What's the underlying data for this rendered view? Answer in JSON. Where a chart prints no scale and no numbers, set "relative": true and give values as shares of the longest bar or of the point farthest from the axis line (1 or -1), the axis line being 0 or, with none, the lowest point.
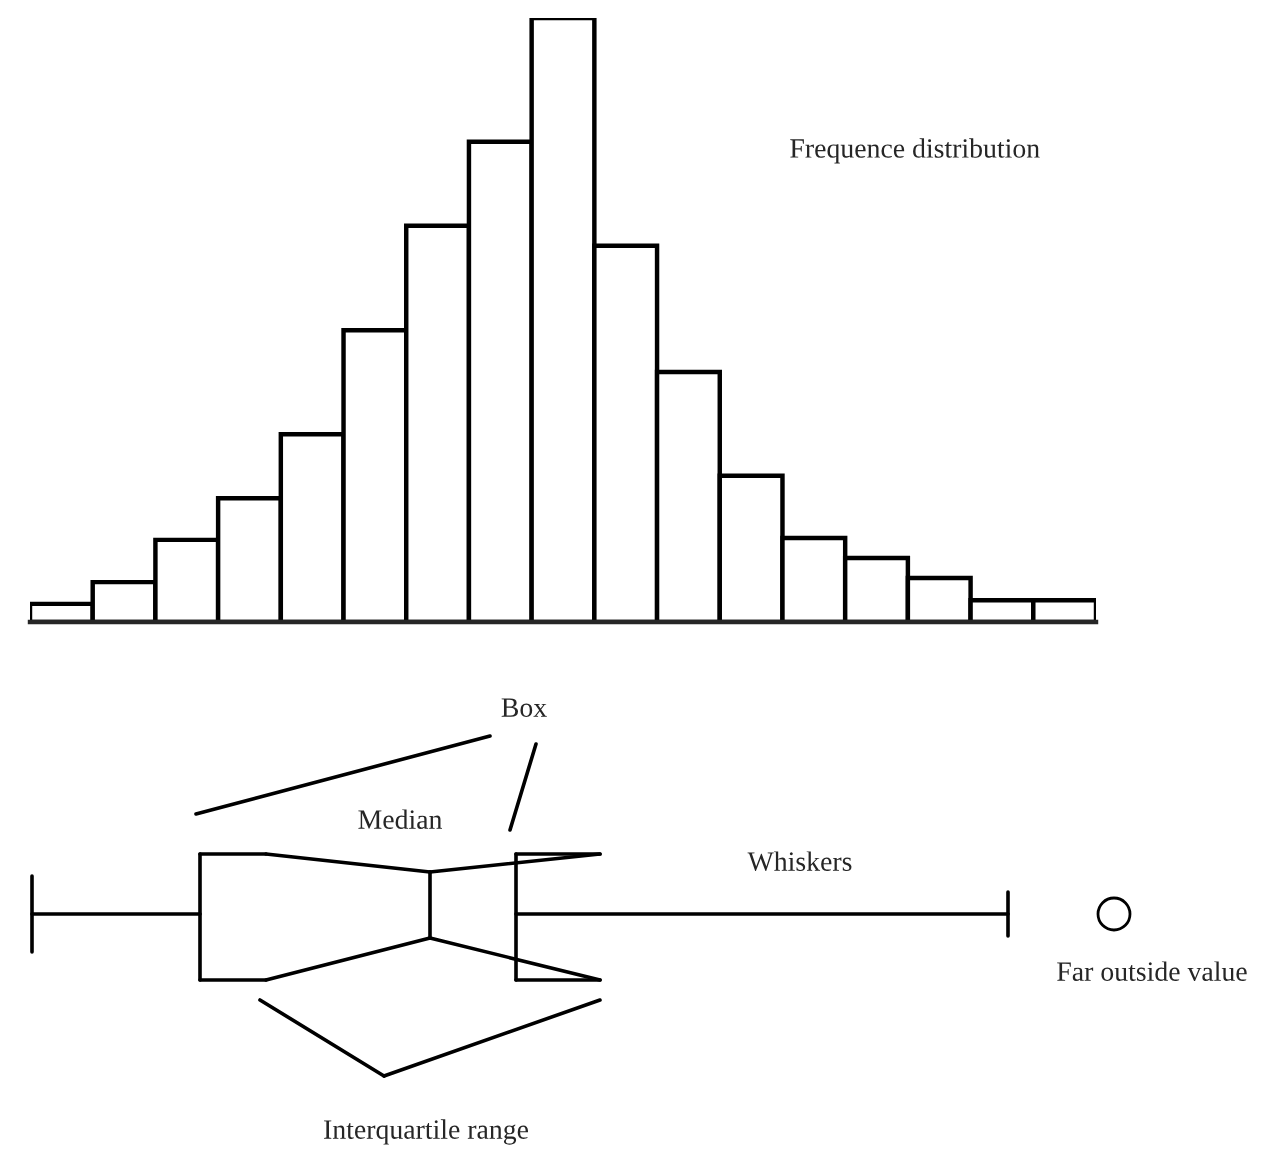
{
  "chart_data": [
    {
      "type": "bar",
      "relative": true,
      "categories": [
        null,
        null,
        null,
        null,
        null,
        null,
        null,
        null,
        null,
        null,
        null,
        null,
        null,
        null,
        null,
        null,
        null
      ],
      "values": [
        0.03,
        0.066,
        0.136,
        0.205,
        0.311,
        0.483,
        0.656,
        0.795,
        1,
        0.623,
        0.414,
        0.242,
        0.139,
        0.106,
        0.073,
        0.036,
        0.036
      ],
      "color": "#ffffff",
      "annotations": [
        "Frequence distribution"
      ]
    },
    {
      "type": "other",
      "annotations": [
        "Box",
        "Median",
        "Whiskers",
        "Far outside value",
        "Interquartile range"
      ]
    }
  ]
}
